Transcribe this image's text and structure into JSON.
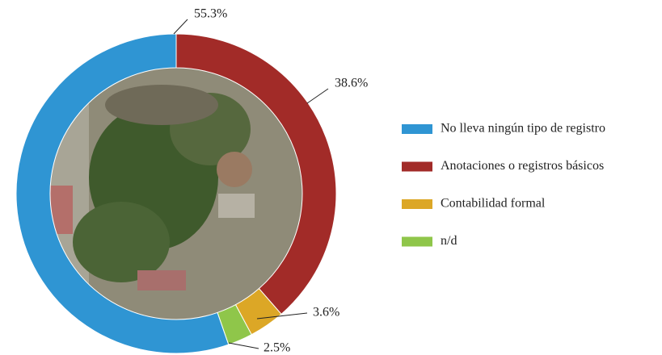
{
  "chart_data": {
    "type": "donut",
    "categories": [
      "No lleva ningún tipo de registro",
      "Anotaciones o registros básicos",
      "Contabilidad formal",
      "n/d"
    ],
    "values": [
      55.3,
      38.6,
      3.6,
      2.5
    ],
    "value_labels": [
      "55.3%",
      "38.6%",
      "3.6%",
      "2.5%"
    ],
    "colors": [
      "#2f95d3",
      "#a22b28",
      "#dca726",
      "#8fc64a"
    ],
    "legend": "right"
  }
}
